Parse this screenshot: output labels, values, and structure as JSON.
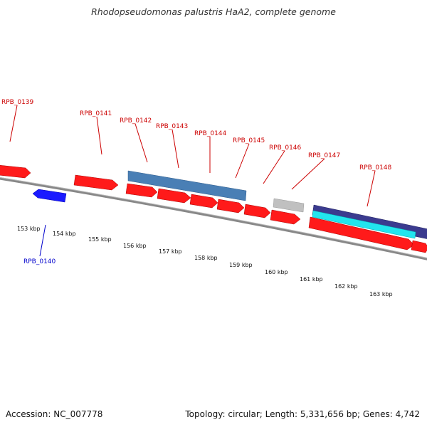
{
  "title": "Rhodopseudomonas palustris HaA2, complete genome",
  "footer": {
    "accession": "Accession: NC_007778",
    "summary": "Topology: circular; Length: 5,331,656 bp; Genes: 4,742"
  },
  "colors": {
    "forward_gene": "#ff1a1a",
    "reverse_gene": "#1a1aff",
    "label_forward": "#cc0000",
    "label_reverse": "#0000cc",
    "gc_skew": "#118811",
    "backbone": "#888888",
    "steelblue_feature": "#4a7fb5",
    "grey_feature": "#bbbbbb",
    "navy_feature": "#3b3b8f",
    "cyan_feature": "#22e5ee"
  },
  "gene_labels": [
    {
      "name": "RPB_0139",
      "strand": "forward"
    },
    {
      "name": "RPB_0140",
      "strand": "reverse"
    },
    {
      "name": "RPB_0141",
      "strand": "forward"
    },
    {
      "name": "RPB_0142",
      "strand": "forward"
    },
    {
      "name": "RPB_0143",
      "strand": "forward"
    },
    {
      "name": "RPB_0144",
      "strand": "forward"
    },
    {
      "name": "RPB_0145",
      "strand": "forward"
    },
    {
      "name": "RPB_0146",
      "strand": "forward"
    },
    {
      "name": "RPB_0147",
      "strand": "forward"
    },
    {
      "name": "RPB_0148",
      "strand": "forward"
    }
  ],
  "scale_labels": [
    "153 kbp",
    "154 kbp",
    "155 kbp",
    "156 kbp",
    "157 kbp",
    "158 kbp",
    "159 kbp",
    "160 kbp",
    "161 kbp",
    "162 kbp",
    "163 kbp"
  ]
}
